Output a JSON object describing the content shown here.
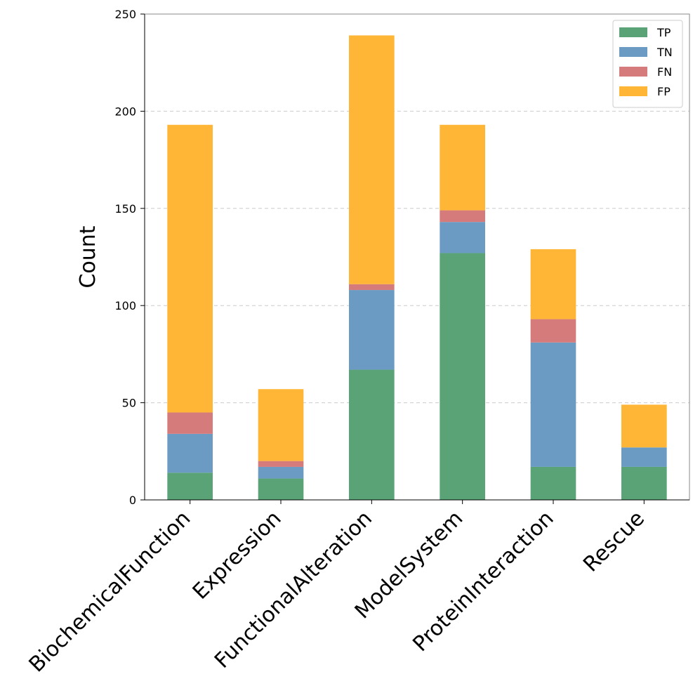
{
  "chart_data": {
    "type": "bar",
    "stacked": true,
    "title": "",
    "xlabel": "",
    "ylabel": "Count",
    "ylim": [
      0,
      250
    ],
    "yticks": [
      0,
      50,
      100,
      150,
      200,
      250
    ],
    "grid": "y-dashed",
    "legend_position": "top-right",
    "categories": [
      "BiochemicalFunction",
      "Expression",
      "FunctionalAlteration",
      "ModelSystem",
      "ProteinInteraction",
      "Rescue"
    ],
    "series": [
      {
        "name": "TP",
        "color": "#59a377",
        "values": [
          14,
          11,
          67,
          127,
          17,
          17
        ]
      },
      {
        "name": "TN",
        "color": "#6b9bc3",
        "values": [
          20,
          6,
          41,
          16,
          64,
          10
        ]
      },
      {
        "name": "FN",
        "color": "#d67b7b",
        "values": [
          11,
          3,
          3,
          6,
          12,
          0
        ]
      },
      {
        "name": "FP",
        "color": "#ffb535",
        "values": [
          148,
          37,
          128,
          44,
          36,
          22
        ]
      }
    ]
  }
}
